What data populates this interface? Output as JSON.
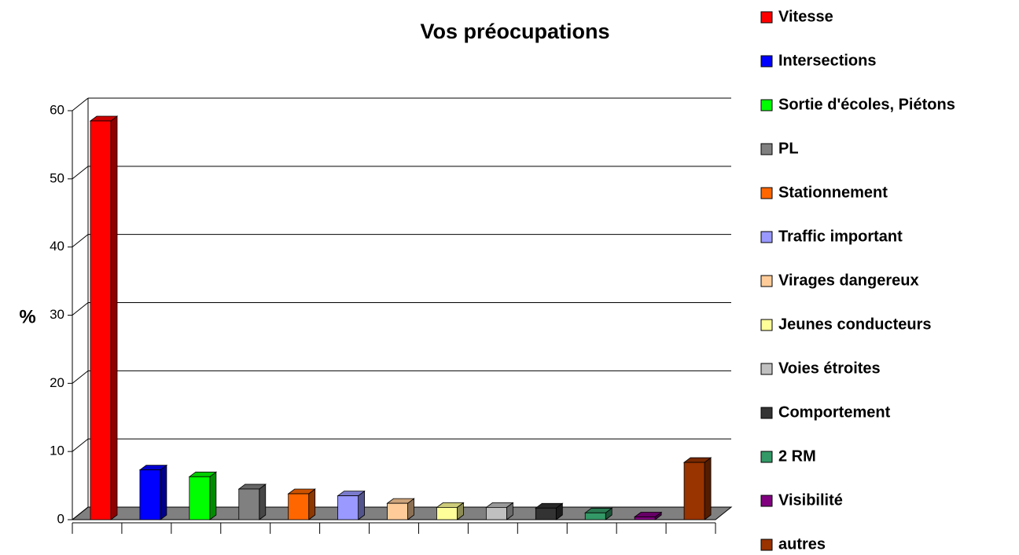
{
  "chart_data": {
    "type": "bar3d",
    "title": "Vos préocupations",
    "y_label": "%",
    "categories": [
      "Vitesse",
      "Intersections",
      "Sortie d'écoles, Piétons",
      "PL",
      "Stationnement",
      "Traffic important",
      "Virages dangereux",
      "Jeunes conducteurs",
      "Voies étroites",
      "Comportement",
      "2 RM",
      "Visibilité",
      "autres"
    ],
    "values": [
      58.5,
      7.3,
      6.3,
      4.5,
      3.8,
      3.5,
      2.4,
      1.8,
      1.8,
      1.7,
      1.0,
      0.4,
      8.4
    ],
    "colors": [
      "#ff0000",
      "#0000ff",
      "#00ff00",
      "#808080",
      "#ff6600",
      "#9999ff",
      "#ffcc99",
      "#ffff99",
      "#c0c0c0",
      "#333333",
      "#339966",
      "#800080",
      "#993300"
    ],
    "ylim": [
      0,
      60
    ],
    "yticks": [
      0,
      10,
      20,
      30,
      40,
      50,
      60
    ],
    "grid": true,
    "legend": "right"
  }
}
